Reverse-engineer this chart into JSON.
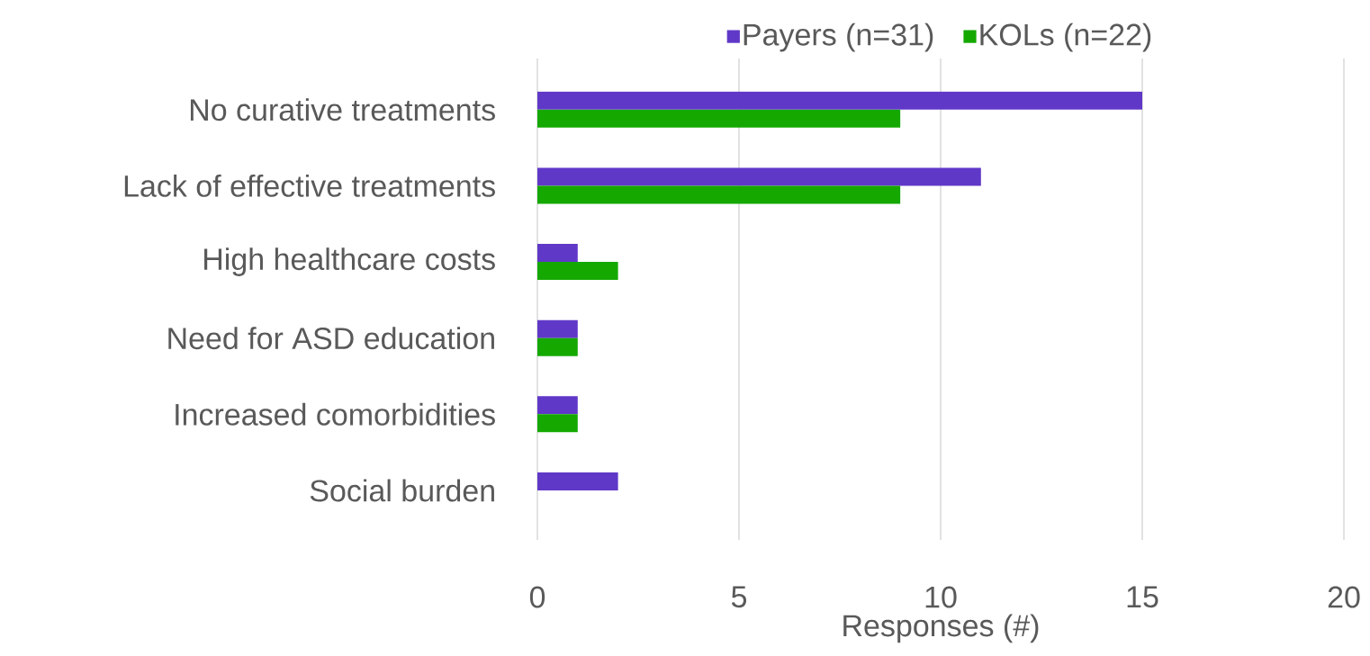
{
  "chart_data": {
    "type": "bar",
    "orientation": "horizontal",
    "categories": [
      "No curative treatments",
      "Lack of effective treatments",
      "High healthcare costs",
      "Need for ASD education",
      "Increased comorbidities",
      "Social burden"
    ],
    "series": [
      {
        "name": "Payers (n=31)",
        "color": "#6038c8",
        "values": [
          15,
          11,
          1,
          1,
          1,
          2
        ]
      },
      {
        "name": "KOLs (n=22)",
        "color": "#14a800",
        "values": [
          9,
          9,
          2,
          1,
          1,
          0
        ]
      }
    ],
    "xlabel": "Responses (#)",
    "xlim": [
      0,
      20
    ],
    "xticks": [
      0,
      5,
      10,
      15,
      20
    ],
    "grid": "x",
    "legend": "top"
  }
}
